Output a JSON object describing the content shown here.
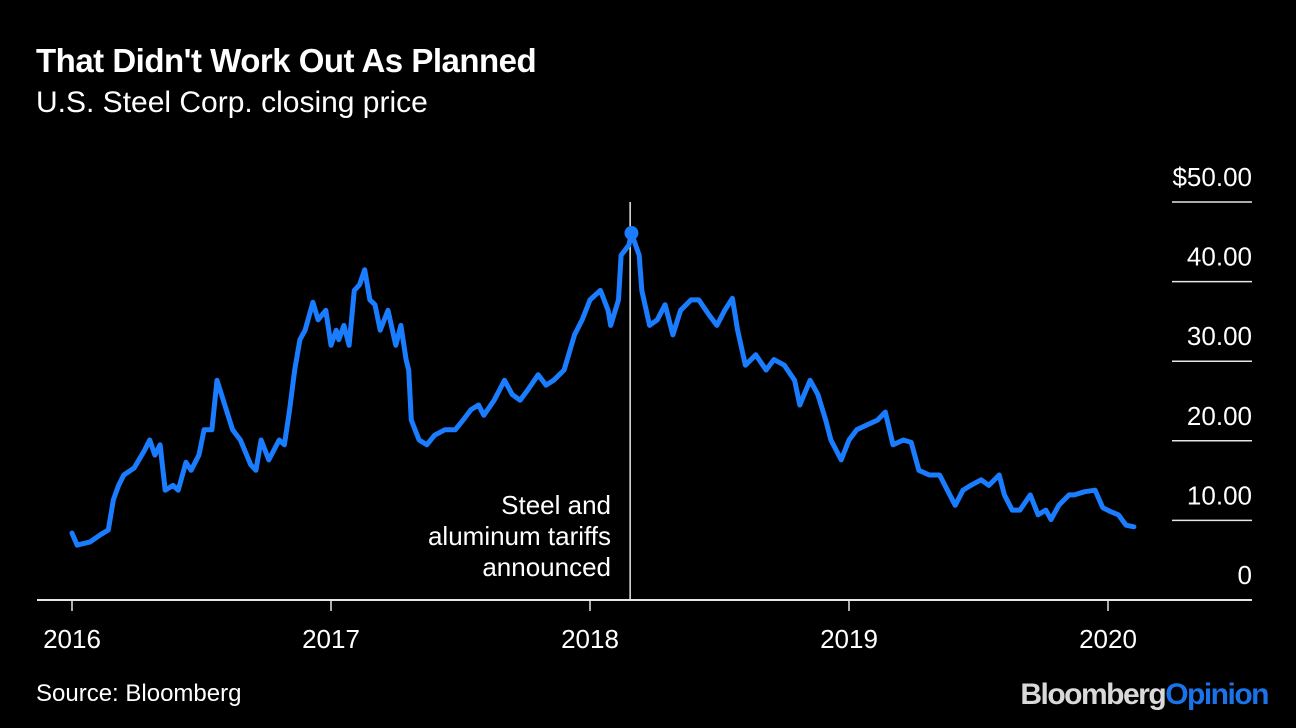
{
  "header": {
    "title": "That Didn't Work Out As Planned",
    "subtitle": "U.S. Steel Corp. closing price"
  },
  "footer": {
    "source": "Source: Bloomberg",
    "logo_part1": "Bloomberg",
    "logo_part2": "Opinion"
  },
  "colors": {
    "line": "#1a7cff",
    "background": "#000000",
    "axis": "#e6e6e6"
  },
  "chart_data": {
    "type": "line",
    "title": "That Didn't Work Out As Planned",
    "subtitle": "U.S. Steel Corp. closing price",
    "xlabel": "",
    "ylabel": "",
    "xlim": [
      2015.87,
      2020.55
    ],
    "ylim": [
      0,
      50
    ],
    "x_ticks": [
      2016,
      2017,
      2018,
      2019,
      2020
    ],
    "x_tick_labels": [
      "2016",
      "2017",
      "2018",
      "2019",
      "2020"
    ],
    "y_ticks": [
      0,
      10,
      20,
      30,
      40,
      50
    ],
    "y_tick_labels": [
      "0",
      "10.00",
      "20.00",
      "30.00",
      "40.00",
      "$50.00"
    ],
    "grid": "horizontal, right side only",
    "annotation": {
      "x": 2018.155,
      "text_lines": [
        "Steel and",
        "aluminum tariffs",
        "announced"
      ]
    },
    "highlight_point": {
      "x": 2018.16,
      "y": 46.1
    },
    "series": [
      {
        "name": "U.S. Steel Corp. closing price",
        "x": [
          2016.0,
          2016.02,
          2016.07,
          2016.11,
          2016.14,
          2016.16,
          2016.18,
          2016.2,
          2016.24,
          2016.28,
          2016.3,
          2016.32,
          2016.34,
          2016.36,
          2016.39,
          2016.41,
          2016.44,
          2016.46,
          2016.49,
          2016.51,
          2016.54,
          2016.56,
          2016.59,
          2016.62,
          2016.65,
          2016.69,
          2016.71,
          2016.73,
          2016.76,
          2016.8,
          2016.82,
          2016.84,
          2016.86,
          2016.88,
          2016.9,
          2016.93,
          2016.95,
          2016.98,
          2017.0,
          2017.02,
          2017.03,
          2017.05,
          2017.07,
          2017.09,
          2017.11,
          2017.13,
          2017.15,
          2017.17,
          2017.19,
          2017.22,
          2017.25,
          2017.27,
          2017.29,
          2017.3,
          2017.31,
          2017.34,
          2017.37,
          2017.4,
          2017.44,
          2017.48,
          2017.51,
          2017.54,
          2017.57,
          2017.59,
          2017.63,
          2017.67,
          2017.7,
          2017.73,
          2017.76,
          2017.8,
          2017.83,
          2017.86,
          2017.9,
          2017.94,
          2017.97,
          2018.0,
          2018.04,
          2018.07,
          2018.08,
          2018.11,
          2018.12,
          2018.15,
          2018.16,
          2018.19,
          2018.2,
          2018.23,
          2018.26,
          2018.29,
          2018.32,
          2018.35,
          2018.39,
          2018.42,
          2018.46,
          2018.49,
          2018.52,
          2018.55,
          2018.57,
          2018.6,
          2018.64,
          2018.68,
          2018.71,
          2018.75,
          2018.79,
          2018.81,
          2018.85,
          2018.88,
          2018.91,
          2018.93,
          2018.97,
          2019.0,
          2019.03,
          2019.07,
          2019.11,
          2019.14,
          2019.17,
          2019.21,
          2019.24,
          2019.27,
          2019.31,
          2019.35,
          2019.38,
          2019.41,
          2019.44,
          2019.47,
          2019.51,
          2019.54,
          2019.58,
          2019.6,
          2019.63,
          2019.66,
          2019.7,
          2019.73,
          2019.76,
          2019.78,
          2019.81,
          2019.85,
          2019.87,
          2019.91,
          2019.95,
          2019.98,
          2020.01,
          2020.04,
          2020.07,
          2020.1
        ],
        "y": [
          8.4,
          6.9,
          7.3,
          8.2,
          8.8,
          12.6,
          14.4,
          15.7,
          16.6,
          18.8,
          20.1,
          18.2,
          19.5,
          13.8,
          14.4,
          13.8,
          17.3,
          16.3,
          18.2,
          21.4,
          21.4,
          27.6,
          24.5,
          21.4,
          20.1,
          17.0,
          16.3,
          20.1,
          17.6,
          20.1,
          19.5,
          23.9,
          28.9,
          32.7,
          33.9,
          37.4,
          35.2,
          36.4,
          32.0,
          33.9,
          32.7,
          34.5,
          32.0,
          38.9,
          39.6,
          41.5,
          37.7,
          37.1,
          33.9,
          36.4,
          32.0,
          34.5,
          30.2,
          28.9,
          22.6,
          20.1,
          19.5,
          20.7,
          21.4,
          21.4,
          22.6,
          23.9,
          24.5,
          23.2,
          25.1,
          27.6,
          25.8,
          25.1,
          26.4,
          28.3,
          27.0,
          27.6,
          28.9,
          33.3,
          35.2,
          37.7,
          38.9,
          36.4,
          34.5,
          37.7,
          43.3,
          44.6,
          46.1,
          43.3,
          38.9,
          34.5,
          35.2,
          37.1,
          33.3,
          36.4,
          37.7,
          37.7,
          35.8,
          34.5,
          36.4,
          37.9,
          33.9,
          29.5,
          30.8,
          28.9,
          30.2,
          29.5,
          27.6,
          24.5,
          27.6,
          25.8,
          22.6,
          20.1,
          17.6,
          20.1,
          21.4,
          22.0,
          22.6,
          23.6,
          19.5,
          20.1,
          19.8,
          16.3,
          15.7,
          15.7,
          13.8,
          11.9,
          13.8,
          14.4,
          15.1,
          14.4,
          15.7,
          13.2,
          11.3,
          11.3,
          13.2,
          10.7,
          11.3,
          10.1,
          11.9,
          13.2,
          13.2,
          13.6,
          13.8,
          11.6,
          11.1,
          10.7,
          9.4,
          9.2
        ]
      }
    ]
  }
}
